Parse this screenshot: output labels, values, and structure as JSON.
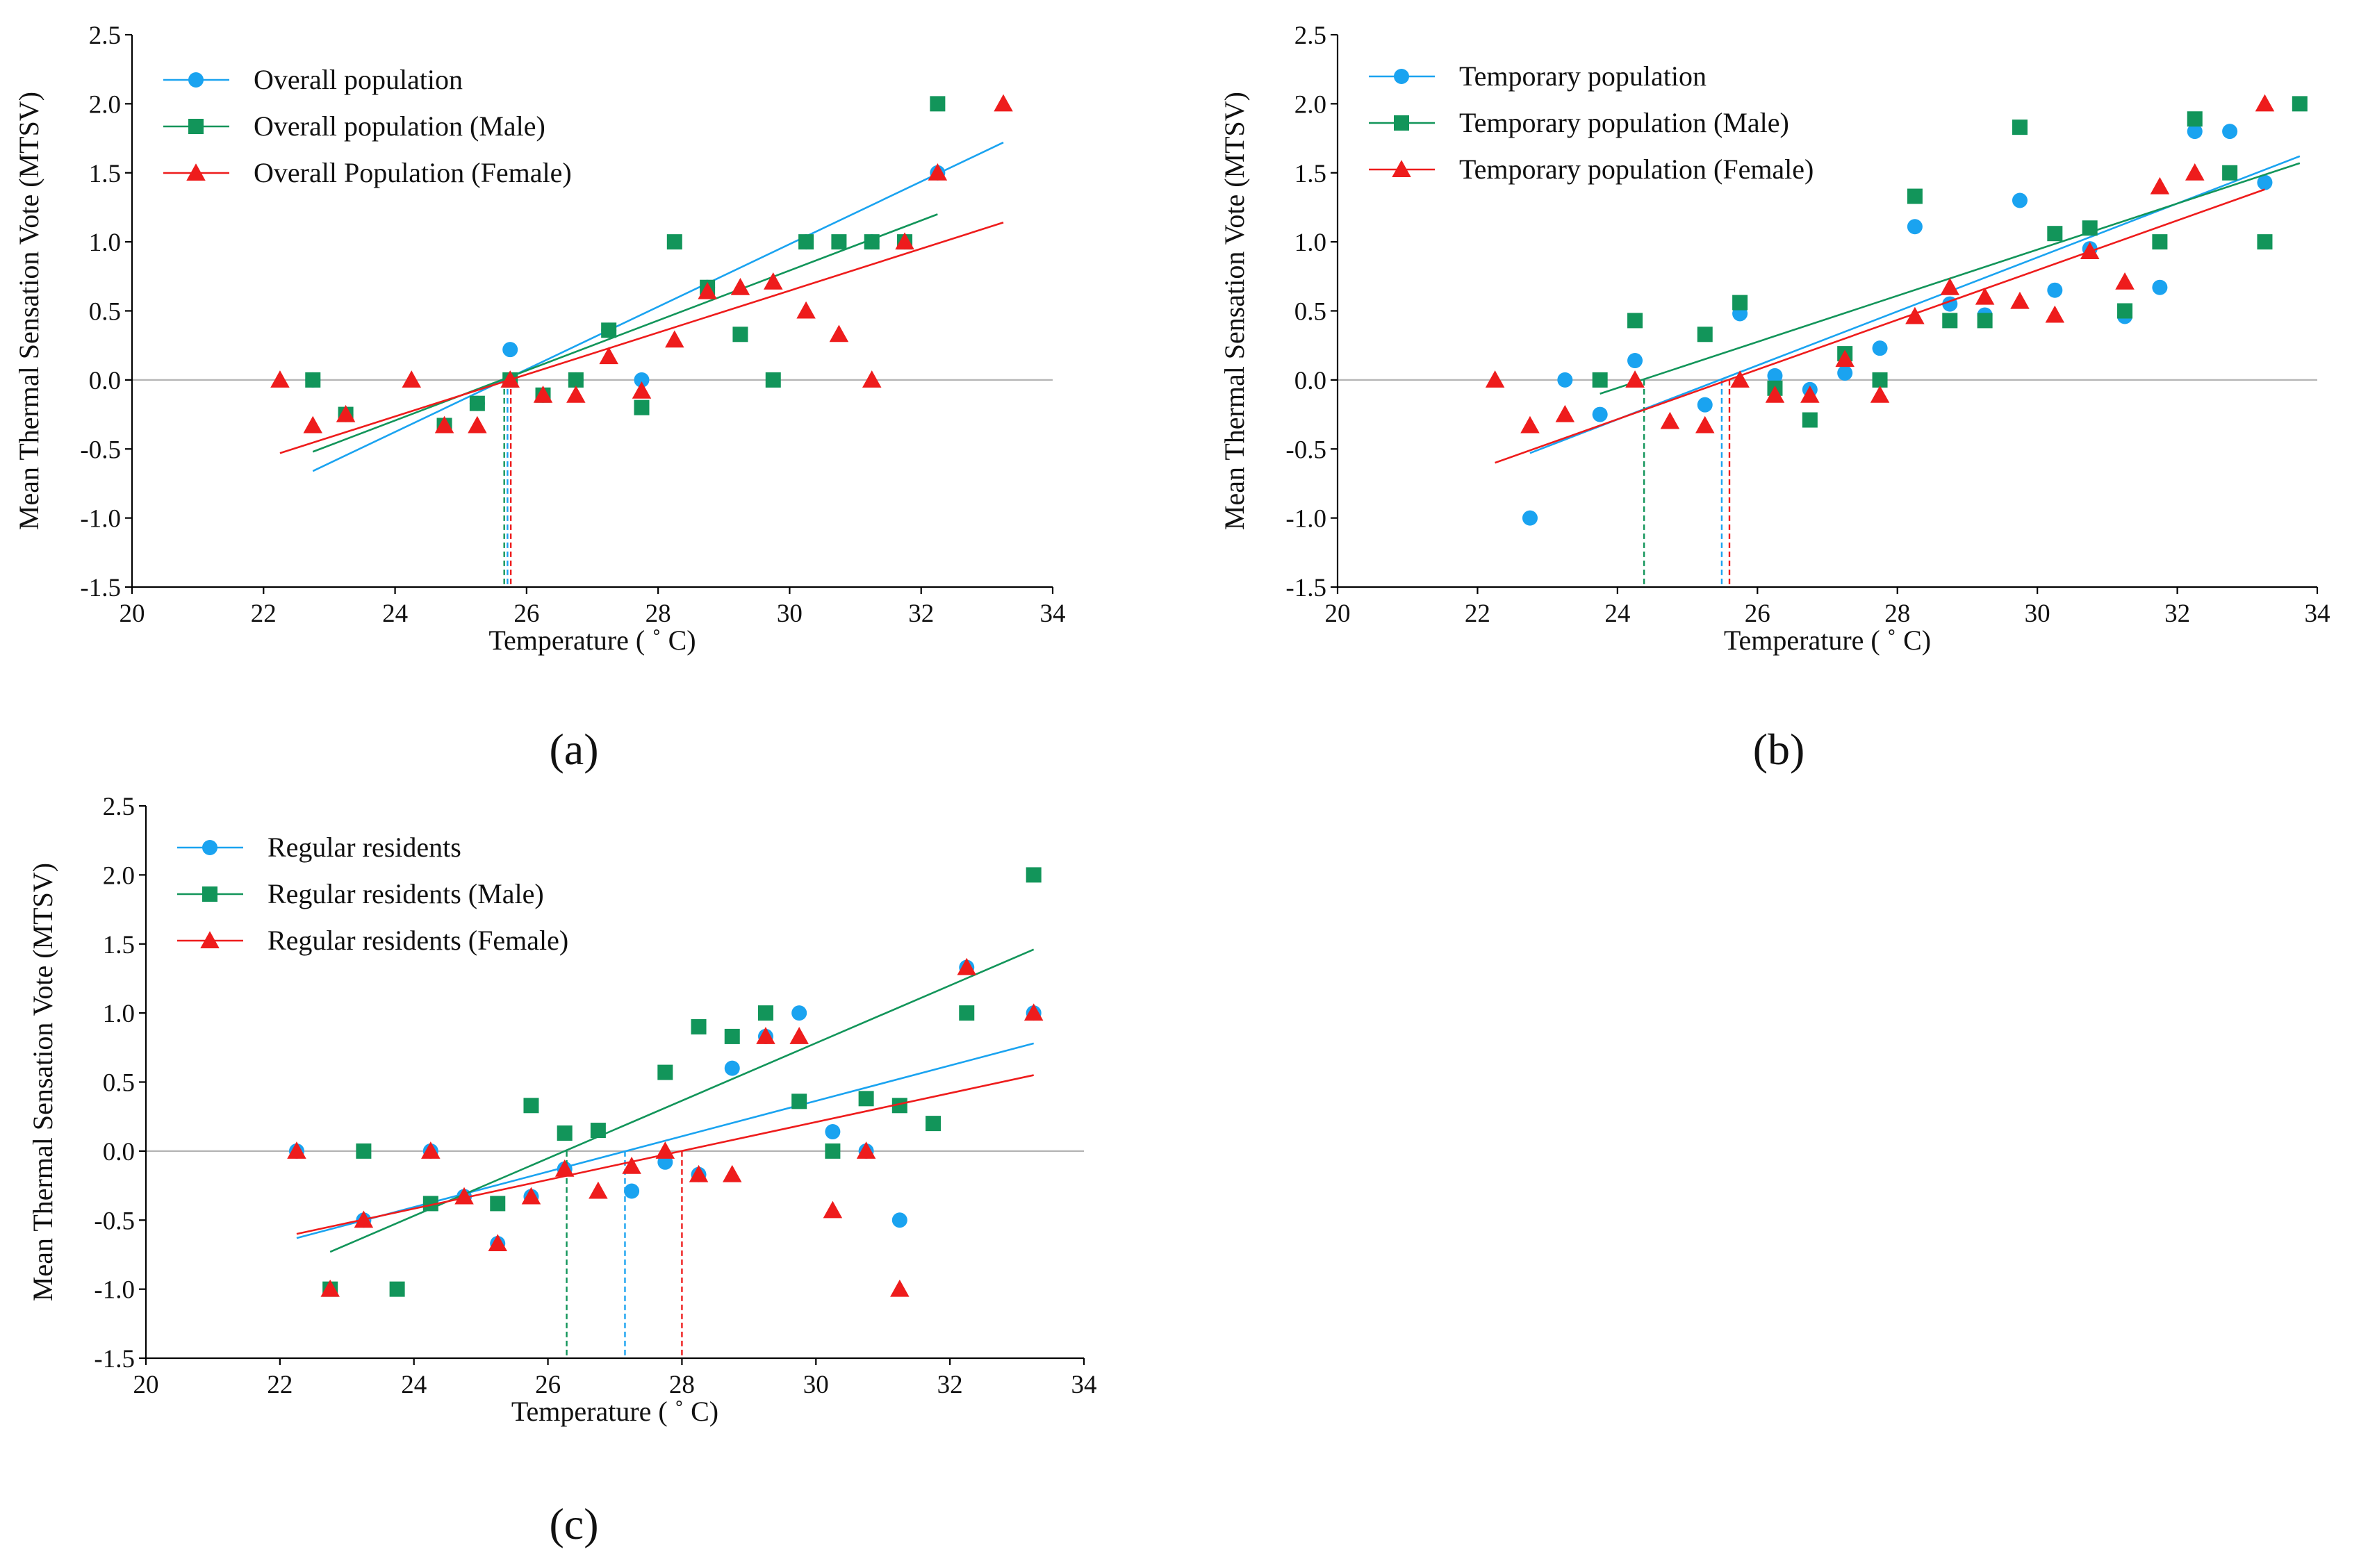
{
  "colors": {
    "overall": "#1aa3f0",
    "male": "#12955a",
    "female": "#ee1c1c",
    "zero_line": "#b5b5b5"
  },
  "chart_data": [
    {
      "type": "scatter",
      "panel_label": "(a)",
      "xlabel": "Temperature ( ˚ C)",
      "ylabel": "Mean Thermal Sensation Vote (MTSV)",
      "xlim": [
        20,
        34
      ],
      "ylim": [
        -1.5,
        2.5
      ],
      "xticks": [
        "20",
        "22",
        "24",
        "26",
        "28",
        "30",
        "32",
        "34"
      ],
      "yticks": [
        "-1.5",
        "-1.0",
        "-0.5",
        "0.0",
        "0.5",
        "1.0",
        "1.5",
        "2.0",
        "2.5"
      ],
      "legend_position": "top-left",
      "series": [
        {
          "name": "Overall population",
          "marker": "circle",
          "color": "#1aa3f0",
          "points": [
            [
              22.75,
              0
            ],
            [
              23.25,
              -0.25
            ],
            [
              24.75,
              -0.33
            ],
            [
              25.25,
              -0.17
            ],
            [
              25.75,
              0.22
            ],
            [
              26.25,
              -0.11
            ],
            [
              26.75,
              0
            ],
            [
              27.25,
              0.36
            ],
            [
              27.75,
              0
            ],
            [
              28.75,
              0.67
            ],
            [
              30.25,
              1.0
            ],
            [
              31.25,
              1.0
            ],
            [
              31.75,
              1.0
            ],
            [
              32.25,
              1.5
            ]
          ],
          "fit": [
            [
              22.75,
              -0.66
            ],
            [
              33.25,
              1.72
            ]
          ],
          "intercept_x": 25.71
        },
        {
          "name": "Overall population (Male)",
          "marker": "square",
          "color": "#12955a",
          "points": [
            [
              22.75,
              0
            ],
            [
              23.25,
              -0.25
            ],
            [
              24.75,
              -0.33
            ],
            [
              25.25,
              -0.17
            ],
            [
              25.75,
              0
            ],
            [
              26.25,
              -0.11
            ],
            [
              26.75,
              0
            ],
            [
              27.25,
              0.36
            ],
            [
              27.75,
              -0.2
            ],
            [
              28.25,
              1.0
            ],
            [
              28.75,
              0.67
            ],
            [
              29.25,
              0.33
            ],
            [
              29.75,
              0
            ],
            [
              30.25,
              1.0
            ],
            [
              30.75,
              1.0
            ],
            [
              31.25,
              1.0
            ],
            [
              31.75,
              1.0
            ],
            [
              32.25,
              2.0
            ]
          ],
          "fit": [
            [
              22.75,
              -0.52
            ],
            [
              32.25,
              1.2
            ]
          ],
          "intercept_x": 25.66
        },
        {
          "name": "Overall Population (Female)",
          "marker": "triangle",
          "color": "#ee1c1c",
          "points": [
            [
              22.25,
              0
            ],
            [
              22.75,
              -0.33
            ],
            [
              23.25,
              -0.25
            ],
            [
              24.25,
              0
            ],
            [
              24.75,
              -0.33
            ],
            [
              25.25,
              -0.33
            ],
            [
              25.75,
              0
            ],
            [
              26.25,
              -0.11
            ],
            [
              26.75,
              -0.11
            ],
            [
              27.25,
              0.17
            ],
            [
              27.75,
              -0.08
            ],
            [
              28.25,
              0.29
            ],
            [
              28.75,
              0.64
            ],
            [
              29.25,
              0.67
            ],
            [
              29.75,
              0.71
            ],
            [
              30.25,
              0.5
            ],
            [
              30.75,
              0.33
            ],
            [
              31.25,
              0
            ],
            [
              31.75,
              1.0
            ],
            [
              32.25,
              1.5
            ],
            [
              33.25,
              2.0
            ]
          ],
          "fit": [
            [
              22.25,
              -0.53
            ],
            [
              33.25,
              1.14
            ]
          ],
          "intercept_x": 25.76
        }
      ]
    },
    {
      "type": "scatter",
      "panel_label": "(b)",
      "xlabel": "Temperature ( ˚ C)",
      "ylabel": "Mean Thermal Sensation Vote (MTSV)",
      "xlim": [
        20,
        34
      ],
      "ylim": [
        -1.5,
        2.5
      ],
      "xticks": [
        "20",
        "22",
        "24",
        "26",
        "28",
        "30",
        "32",
        "34"
      ],
      "yticks": [
        "-1.5",
        "-1.0",
        "-0.5",
        "0.0",
        "0.5",
        "1.0",
        "1.5",
        "2.0",
        "2.5"
      ],
      "legend_position": "top-left",
      "series": [
        {
          "name": "Temporary population",
          "marker": "circle",
          "color": "#1aa3f0",
          "points": [
            [
              22.75,
              -1.0
            ],
            [
              23.25,
              0
            ],
            [
              23.75,
              -0.25
            ],
            [
              24.25,
              0.14
            ],
            [
              25.25,
              -0.18
            ],
            [
              25.75,
              0.48
            ],
            [
              26.25,
              0.03
            ],
            [
              26.75,
              -0.07
            ],
            [
              27.25,
              0.05
            ],
            [
              27.75,
              0.23
            ],
            [
              28.25,
              1.11
            ],
            [
              28.75,
              0.55
            ],
            [
              29.25,
              0.47
            ],
            [
              29.75,
              1.3
            ],
            [
              30.25,
              0.65
            ],
            [
              30.75,
              0.95
            ],
            [
              31.25,
              0.46
            ],
            [
              31.75,
              0.67
            ],
            [
              32.25,
              1.8
            ],
            [
              32.75,
              1.8
            ],
            [
              33.25,
              1.43
            ]
          ],
          "fit": [
            [
              22.75,
              -0.53
            ],
            [
              33.75,
              1.62
            ]
          ],
          "intercept_x": 25.49
        },
        {
          "name": "Temporary population (Male)",
          "marker": "square",
          "color": "#12955a",
          "points": [
            [
              23.75,
              0
            ],
            [
              24.25,
              0.43
            ],
            [
              25.25,
              0.33
            ],
            [
              25.75,
              0.56
            ],
            [
              26.25,
              -0.06
            ],
            [
              26.75,
              -0.29
            ],
            [
              27.25,
              0.19
            ],
            [
              27.75,
              0
            ],
            [
              28.25,
              1.33
            ],
            [
              28.75,
              0.43
            ],
            [
              29.25,
              0.43
            ],
            [
              29.75,
              1.83
            ],
            [
              30.25,
              1.06
            ],
            [
              30.75,
              1.1
            ],
            [
              31.25,
              0.5
            ],
            [
              31.75,
              1.0
            ],
            [
              32.25,
              1.89
            ],
            [
              32.75,
              1.5
            ],
            [
              33.25,
              1.0
            ],
            [
              33.75,
              2.0
            ]
          ],
          "fit": [
            [
              23.75,
              -0.1
            ],
            [
              33.75,
              1.57
            ]
          ],
          "intercept_x": 24.38
        },
        {
          "name": "Temporary population (Female)",
          "marker": "triangle",
          "color": "#ee1c1c",
          "points": [
            [
              22.25,
              0
            ],
            [
              22.75,
              -0.33
            ],
            [
              23.25,
              -0.25
            ],
            [
              24.25,
              0
            ],
            [
              24.75,
              -0.3
            ],
            [
              25.25,
              -0.33
            ],
            [
              25.75,
              0
            ],
            [
              26.25,
              -0.11
            ],
            [
              26.75,
              -0.11
            ],
            [
              27.25,
              0.15
            ],
            [
              27.75,
              -0.11
            ],
            [
              28.25,
              0.46
            ],
            [
              28.75,
              0.67
            ],
            [
              29.25,
              0.6
            ],
            [
              29.75,
              0.57
            ],
            [
              30.25,
              0.47
            ],
            [
              30.75,
              0.93
            ],
            [
              31.25,
              0.71
            ],
            [
              31.75,
              1.4
            ],
            [
              32.25,
              1.5
            ],
            [
              33.25,
              2.0
            ]
          ],
          "fit": [
            [
              22.25,
              -0.6
            ],
            [
              33.25,
              1.38
            ]
          ],
          "intercept_x": 25.6
        }
      ]
    },
    {
      "type": "scatter",
      "panel_label": "(c)",
      "xlabel": "Temperature ( ˚ C)",
      "ylabel": "Mean Thermal Sensation Vote (MTSV)",
      "xlim": [
        20,
        34
      ],
      "ylim": [
        -1.5,
        2.5
      ],
      "xticks": [
        "20",
        "22",
        "24",
        "26",
        "28",
        "30",
        "32",
        "34"
      ],
      "yticks": [
        "-1.5",
        "-1.0",
        "-0.5",
        "0.0",
        "0.5",
        "1.0",
        "1.5",
        "2.0",
        "2.5"
      ],
      "legend_position": "top-left",
      "series": [
        {
          "name": "Regular residents",
          "marker": "circle",
          "color": "#1aa3f0",
          "points": [
            [
              22.25,
              0
            ],
            [
              23.25,
              -0.5
            ],
            [
              24.25,
              0
            ],
            [
              24.75,
              -0.33
            ],
            [
              25.25,
              -0.67
            ],
            [
              25.75,
              -0.33
            ],
            [
              26.25,
              -0.13
            ],
            [
              27.25,
              -0.29
            ],
            [
              27.75,
              -0.08
            ],
            [
              28.25,
              -0.17
            ],
            [
              28.75,
              0.6
            ],
            [
              29.25,
              0.83
            ],
            [
              29.75,
              1.0
            ],
            [
              30.25,
              0.14
            ],
            [
              30.75,
              0
            ],
            [
              31.25,
              -0.5
            ],
            [
              32.25,
              1.33
            ],
            [
              33.25,
              1.0
            ]
          ],
          "fit": [
            [
              22.25,
              -0.63
            ],
            [
              33.25,
              0.78
            ]
          ],
          "intercept_x": 27.15
        },
        {
          "name": "Regular residents (Male)",
          "marker": "square",
          "color": "#12955a",
          "points": [
            [
              22.75,
              -1.0
            ],
            [
              23.25,
              0
            ],
            [
              23.75,
              -1.0
            ],
            [
              24.25,
              -0.38
            ],
            [
              25.25,
              -0.38
            ],
            [
              25.75,
              0.33
            ],
            [
              26.25,
              0.13
            ],
            [
              26.75,
              0.15
            ],
            [
              27.75,
              0.57
            ],
            [
              28.25,
              0.9
            ],
            [
              28.75,
              0.83
            ],
            [
              29.25,
              1.0
            ],
            [
              29.75,
              0.36
            ],
            [
              30.25,
              0
            ],
            [
              30.75,
              0.38
            ],
            [
              31.25,
              0.33
            ],
            [
              31.75,
              0.2
            ],
            [
              32.25,
              1.0
            ],
            [
              33.25,
              2.0
            ]
          ],
          "fit": [
            [
              22.75,
              -0.73
            ],
            [
              33.25,
              1.46
            ]
          ],
          "intercept_x": 26.28
        },
        {
          "name": "Regular residents (Female)",
          "marker": "triangle",
          "color": "#ee1c1c",
          "points": [
            [
              22.25,
              0
            ],
            [
              22.75,
              -1.0
            ],
            [
              23.25,
              -0.5
            ],
            [
              24.25,
              0
            ],
            [
              24.75,
              -0.33
            ],
            [
              25.25,
              -0.67
            ],
            [
              25.75,
              -0.33
            ],
            [
              26.25,
              -0.13
            ],
            [
              26.75,
              -0.29
            ],
            [
              27.25,
              -0.11
            ],
            [
              27.75,
              0
            ],
            [
              28.25,
              -0.17
            ],
            [
              28.75,
              -0.17
            ],
            [
              29.25,
              0.83
            ],
            [
              29.75,
              0.83
            ],
            [
              30.25,
              -0.43
            ],
            [
              30.75,
              0
            ],
            [
              31.25,
              -1.0
            ],
            [
              32.25,
              1.33
            ],
            [
              33.25,
              1.0
            ]
          ],
          "fit": [
            [
              22.25,
              -0.6
            ],
            [
              33.25,
              0.55
            ]
          ],
          "intercept_x": 28.0
        }
      ]
    }
  ]
}
